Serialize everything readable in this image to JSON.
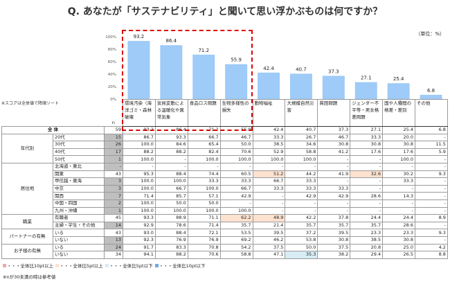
{
  "title": "Q. あなたが「サステナビリティ」と聞いて思い浮かぶものは何ですか？",
  "unit": "（単位：%）",
  "sort_note": "※スコアは全体値で降順ソート",
  "n_label": "n",
  "colors": {
    "bar": "#9ecbf7",
    "highlight_high10": "#f4a6a6",
    "highlight_high5": "#fde2cf",
    "highlight_low5": "#d7ecf5",
    "highlight_low10": "#6fa8e8",
    "n_under30": "#bfbfbf",
    "redbox": "#dd0000"
  },
  "chart_data": {
    "type": "bar",
    "categories": [
      "環境汚染（海洋ゴミ・森林破壊",
      "気候変動による温暖化や異常気象",
      "食品ロス問題",
      "生物多様性の損失",
      "動物福祉",
      "大規模自然災害",
      "貧困問題",
      "ジェンダー不平等・男女格差問題",
      "国や人種間の格差・差別",
      "その他"
    ],
    "values": [
      93.2,
      86.4,
      71.2,
      55.9,
      42.4,
      40.7,
      37.3,
      27.1,
      25.4,
      6.8
    ],
    "yticks": [
      "0%",
      "20%",
      "40%",
      "60%",
      "80%",
      "100%"
    ],
    "ylim": [
      0,
      100
    ]
  },
  "rows": [
    {
      "group": "全 体",
      "label": "",
      "n": "59",
      "values": [
        "93.2",
        "86.4",
        "71.2",
        "55.9",
        "42.4",
        "40.7",
        "37.3",
        "27.1",
        "25.4",
        "6.8"
      ]
    },
    {
      "group": "年代別",
      "label": "20代",
      "n": "15",
      "values": [
        "86.7",
        "93.3",
        "66.7",
        "46.7",
        "33.3",
        "26.7",
        "46.7",
        "33.3",
        "20.0",
        "-"
      ]
    },
    {
      "group": "",
      "label": "30代",
      "n": "26",
      "values": [
        "100.0",
        "84.6",
        "65.4",
        "50.0",
        "38.5",
        "34.6",
        "30.8",
        "30.8",
        "30.8",
        "11.5"
      ]
    },
    {
      "group": "",
      "label": "40代",
      "n": "17",
      "values": [
        "88.2",
        "88.2",
        "82.4",
        "70.6",
        "52.9",
        "58.8",
        "41.2",
        "17.6",
        "17.6",
        "5.9"
      ]
    },
    {
      "group": "",
      "label": "50代",
      "n": "1",
      "values": [
        "100.0",
        "-",
        "100.0",
        "100.0",
        "100.0",
        "100.0",
        "-",
        "-",
        "100.0",
        "-"
      ]
    },
    {
      "group": "居住地",
      "label": "北海道・東北",
      "n": "-",
      "values": [
        "-",
        "-",
        "-",
        "-",
        "-",
        "-",
        "-",
        "-",
        "-",
        "-"
      ]
    },
    {
      "group": "",
      "label": "関東",
      "n": "43",
      "values": [
        "95.3",
        "88.4",
        "74.4",
        "60.5",
        "51.2",
        "44.2",
        "41.9",
        "32.6",
        "30.2",
        "9.3"
      ]
    },
    {
      "group": "",
      "label": "甲信越・東海",
      "n": "3",
      "values": [
        "100.0",
        "100.0",
        "33.3",
        "33.3",
        "66.7",
        "33.3",
        "-",
        "-",
        "33.3",
        "-"
      ]
    },
    {
      "group": "",
      "label": "中京",
      "n": "3",
      "values": [
        "100.0",
        "66.7",
        "100.0",
        "66.7",
        "33.3",
        "33.3",
        "33.3",
        "-",
        "-",
        "-"
      ]
    },
    {
      "group": "",
      "label": "関西",
      "n": "7",
      "values": [
        "71.4",
        "85.7",
        "57.1",
        "42.9",
        "-",
        "42.9",
        "42.9",
        "28.6",
        "14.3",
        "-"
      ]
    },
    {
      "group": "",
      "label": "中国・四国",
      "n": "2",
      "values": [
        "100.0",
        "50.0",
        "50.0",
        "-",
        "-",
        "-",
        "-",
        "-",
        "-",
        "-"
      ]
    },
    {
      "group": "",
      "label": "九州・沖縄",
      "n": "1",
      "values": [
        "100.0",
        "100.0",
        "100.0",
        "100.0",
        "-",
        "-",
        "-",
        "-",
        "-",
        "-"
      ]
    },
    {
      "group": "職業",
      "label": "有職者",
      "n": "45",
      "values": [
        "93.3",
        "88.9",
        "71.1",
        "62.2",
        "48.9",
        "42.2",
        "37.8",
        "24.4",
        "24.4",
        "8.9"
      ]
    },
    {
      "group": "",
      "label": "主婦・学生・その他",
      "n": "14",
      "values": [
        "92.9",
        "78.6",
        "71.4",
        "35.7",
        "21.4",
        "35.7",
        "35.7",
        "35.7",
        "28.6",
        "-"
      ]
    },
    {
      "group": "パートナーの有無",
      "label": "いる",
      "n": "43",
      "values": [
        "93.0",
        "88.4",
        "72.1",
        "53.5",
        "39.5",
        "37.2",
        "39.5",
        "23.3",
        "23.3",
        "9.3"
      ]
    },
    {
      "group": "",
      "label": "いない",
      "n": "13",
      "values": [
        "92.3",
        "76.9",
        "76.9",
        "69.2",
        "46.2",
        "53.8",
        "30.8",
        "38.5",
        "30.8",
        "-"
      ]
    },
    {
      "group": "お子様の有無",
      "label": "いる",
      "n": "24",
      "values": [
        "91.7",
        "83.3",
        "70.8",
        "54.2",
        "37.5",
        "50.0",
        "37.5",
        "20.8",
        "25.0",
        "4.2"
      ]
    },
    {
      "group": "",
      "label": "いない",
      "n": "34",
      "values": [
        "94.1",
        "88.2",
        "70.6",
        "58.8",
        "47.1",
        "35.3",
        "38.2",
        "29.4",
        "26.5",
        "8.8"
      ]
    }
  ],
  "highlights": [
    {
      "row": 6,
      "col": 4,
      "level": "high5"
    },
    {
      "row": 6,
      "col": 7,
      "level": "high5"
    },
    {
      "row": 12,
      "col": 3,
      "level": "high5"
    },
    {
      "row": 12,
      "col": 4,
      "level": "high5"
    },
    {
      "row": 17,
      "col": 5,
      "level": "low5"
    }
  ],
  "legend": [
    "・・・全体比10pt以上",
    "・・・全体比5pt以上",
    "・・・全体比5pt以下",
    "・・・全体比10pt以下"
  ],
  "footnote": "※nが30未満の時は参考値"
}
